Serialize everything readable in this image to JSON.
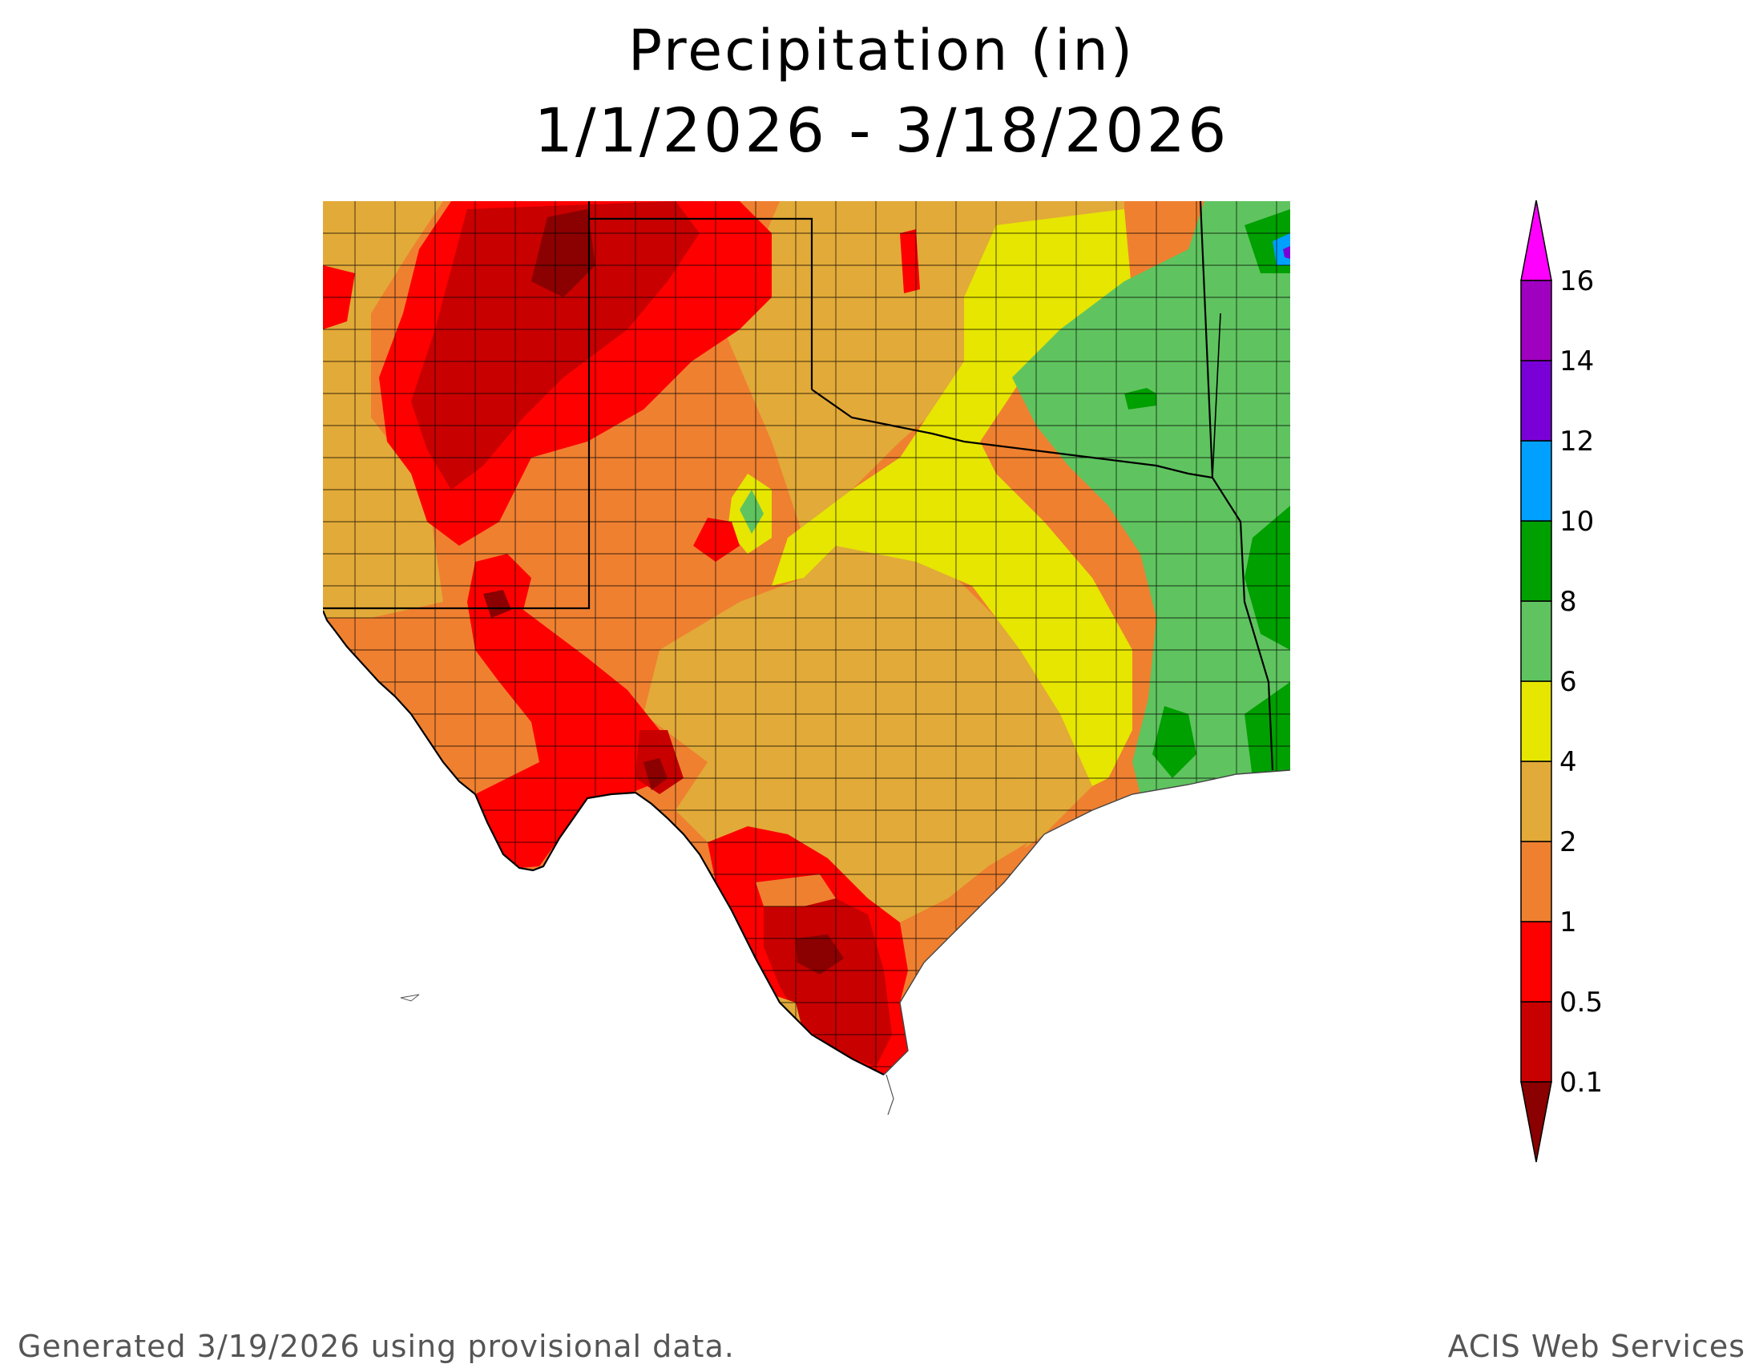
{
  "title": "Precipitation (in)",
  "subtitle": "1/1/2026 - 3/18/2026",
  "footer": {
    "left": "Generated 3/19/2026  using provisional data.",
    "right": "ACIS Web Services"
  },
  "legend": {
    "bins": [
      {
        "label": "0.1",
        "color": "#8b0000"
      },
      {
        "label": "0.5",
        "color": "#c80000"
      },
      {
        "label": "1",
        "color": "#ff0000"
      },
      {
        "label": "2",
        "color": "#ef8030"
      },
      {
        "label": "4",
        "color": "#e2aa38"
      },
      {
        "label": "6",
        "color": "#e6e600"
      },
      {
        "label": "8",
        "color": "#5fc45f"
      },
      {
        "label": "10",
        "color": "#00a000"
      },
      {
        "label": "12",
        "color": "#00a0ff"
      },
      {
        "label": "14",
        "color": "#7a00d8"
      },
      {
        "label": "16",
        "color": "#a000c0"
      }
    ],
    "under_color": "#8b0000",
    "over_color": "#ff00ff"
  },
  "map": {
    "region": "Texas and neighboring states",
    "colors": {
      "dry_darkest": "#8b0000",
      "dry_dark": "#c80000",
      "dry": "#ff0000",
      "low": "#ef8030",
      "mid": "#e2aa38",
      "moderate": "#e6e600",
      "wet": "#5fc45f",
      "wetter": "#00a000",
      "very_wet": "#00a0ff",
      "extreme": "#7a00d8"
    }
  }
}
